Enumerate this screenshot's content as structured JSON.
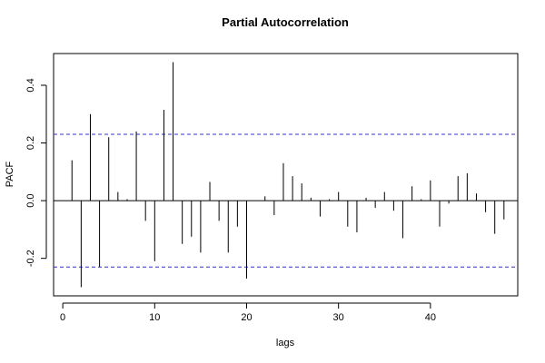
{
  "chart_data": {
    "type": "bar",
    "title": "Partial Autocorrelation",
    "xlabel": "lags",
    "ylabel": "PACF",
    "xlim": [
      -1,
      49.5
    ],
    "ylim": [
      -0.33,
      0.51
    ],
    "xticks": [
      0,
      10,
      20,
      30,
      40
    ],
    "yticks": [
      -0.2,
      0.0,
      0.2,
      0.4
    ],
    "xtick_labels": [
      "0",
      "10",
      "20",
      "30",
      "40"
    ],
    "ytick_labels": [
      "-0.2",
      "0.0",
      "0.2",
      "0.4"
    ],
    "conf_limit": 0.23,
    "conf_color": "#3333cc",
    "grid": false,
    "x": [
      1,
      2,
      3,
      4,
      5,
      6,
      7,
      8,
      9,
      10,
      11,
      12,
      13,
      14,
      15,
      16,
      17,
      18,
      19,
      20,
      21,
      22,
      23,
      24,
      25,
      26,
      27,
      28,
      29,
      30,
      31,
      32,
      33,
      34,
      35,
      36,
      37,
      38,
      39,
      40,
      41,
      42,
      43,
      44,
      45,
      46,
      47,
      48
    ],
    "values": [
      0.14,
      -0.3,
      0.3,
      -0.23,
      0.22,
      0.03,
      0.005,
      0.24,
      -0.07,
      -0.21,
      0.315,
      0.48,
      -0.15,
      -0.125,
      -0.18,
      0.065,
      -0.07,
      -0.18,
      -0.09,
      -0.27,
      0.0,
      0.015,
      -0.05,
      0.13,
      0.085,
      0.06,
      0.01,
      -0.055,
      0.005,
      0.03,
      -0.09,
      -0.11,
      0.01,
      -0.025,
      0.03,
      -0.035,
      -0.13,
      0.05,
      0.005,
      0.07,
      -0.09,
      -0.01,
      0.085,
      0.095,
      0.025,
      -0.04,
      -0.115,
      -0.065
    ]
  }
}
